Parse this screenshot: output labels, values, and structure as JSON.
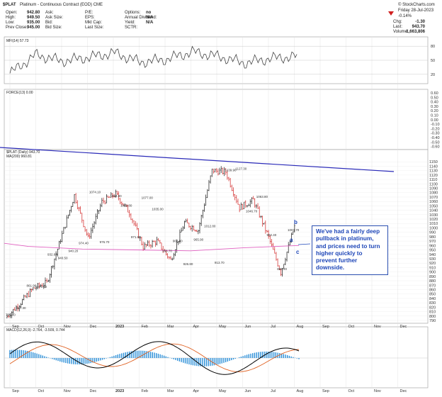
{
  "header": {
    "symbol": "$PLAT",
    "name": "Platinum - Continuous Contract (EOD) CME",
    "source": "© StockCharts.com",
    "date": "Friday 28-Jul-2023",
    "change_pct": "-0.14%",
    "fields": [
      {
        "label": "Open:",
        "value": "942.80"
      },
      {
        "label": "High:",
        "value": "949.50"
      },
      {
        "label": "Low:",
        "value": "935.00"
      },
      {
        "label": "Prev Close:",
        "value": "945.00"
      },
      {
        "label": "Ask:",
        "value": ""
      },
      {
        "label": "Ask Size:",
        "value": ""
      },
      {
        "label": "Bid:",
        "value": ""
      },
      {
        "label": "Bid Size:",
        "value": ""
      },
      {
        "label": "P/E:",
        "value": ""
      },
      {
        "label": "EPS:",
        "value": ""
      },
      {
        "label": "Mkt Cap:",
        "value": ""
      },
      {
        "label": "Last Size:",
        "value": ""
      },
      {
        "label": "Options:",
        "value": "no"
      },
      {
        "label": "Annual Dividend:",
        "value": "N/A"
      },
      {
        "label": "Yield:",
        "value": "N/A"
      },
      {
        "label": "SCTR:",
        "value": ""
      }
    ],
    "right": [
      {
        "label": "Chg:",
        "value": "-1.30"
      },
      {
        "label": "Last:",
        "value": "943.70"
      },
      {
        "label": "Volume:",
        "value": "1,663,806"
      }
    ]
  },
  "annotation": "We've had a fairly deep pullback in platinum, and prices need to turn higher quickly to prevent further downside.",
  "wave_labels": [
    "b",
    "a",
    "c"
  ],
  "colors": {
    "price_up": "#111111",
    "price_down": "#d02020",
    "ma": "#e060c0",
    "trend": "#2a2ab8",
    "macd": "#000000",
    "signal": "#e06020",
    "hist": "#2b8fd8"
  },
  "chart_data": [
    {
      "type": "line",
      "title": "MFI(14) 57.73",
      "ylim": [
        0,
        100
      ],
      "y_ticks": [
        "20",
        "50",
        "80"
      ],
      "series": [
        {
          "name": "MFI(14)",
          "x": [
            "Sep",
            "Oct",
            "Nov",
            "Dec",
            "2023",
            "Feb",
            "Mar",
            "Apr",
            "May",
            "Jun",
            "Jul",
            "Aug"
          ],
          "values": [
            22,
            62,
            48,
            56,
            66,
            46,
            52,
            68,
            58,
            44,
            54,
            58
          ]
        }
      ]
    },
    {
      "type": "line",
      "title": "FORCE(13) 0.00",
      "y_ticks": [
        "0.60",
        "0.50",
        "0.40",
        "0.30",
        "0.20",
        "0.10",
        "0.00",
        "-0.10",
        "-0.20",
        "-0.30",
        "-0.40",
        "-0.50",
        "-0.60"
      ],
      "series": []
    },
    {
      "type": "line",
      "title": "$PLAT (Daily) 943.70",
      "legend": [
        "MA(200) 960.81"
      ],
      "ylim": [
        790,
        1160
      ],
      "x_ticks": [
        "Sep",
        "Oct",
        "Nov",
        "Dec",
        "2023",
        "Feb",
        "Mar",
        "Apr",
        "May",
        "Jun",
        "Jul",
        "Aug",
        "Sep",
        "Oct",
        "Nov",
        "Dec"
      ],
      "y_ticks": [
        "1150",
        "1140",
        "1130",
        "1120",
        "1110",
        "1100",
        "1090",
        "1080",
        "1070",
        "1060",
        "1050",
        "1040",
        "1030",
        "1020",
        "1010",
        "1000",
        "990",
        "980",
        "970",
        "960",
        "950",
        "940",
        "930",
        "920",
        "910",
        "900",
        "890",
        "880",
        "870",
        "860",
        "850",
        "840",
        "830",
        "820",
        "810",
        "800",
        "790"
      ],
      "series": [
        {
          "name": "$PLAT",
          "x": [
            "Sep",
            "Sep",
            "Oct",
            "Oct",
            "Nov",
            "Nov",
            "Dec",
            "Dec",
            "2023",
            "2023",
            "Feb",
            "Feb",
            "Mar",
            "Mar",
            "Apr",
            "Apr",
            "May",
            "May",
            "Jun",
            "Jun",
            "Jul",
            "Jul"
          ],
          "values": [
            796,
            827,
            862,
            876,
            974,
            1074,
            976,
            1059,
            1077,
            1035,
            957,
            970,
            927,
            1012,
            995,
            1130,
            1127,
            1046,
            1063,
            988,
            899,
            1003
          ]
        },
        {
          "name": "MA(200)",
          "x": [
            "Sep",
            "Nov",
            "2023",
            "Mar",
            "May",
            "Jul"
          ],
          "values": [
            958,
            952,
            950,
            948,
            955,
            960
          ]
        }
      ],
      "annotations": [
        "796.00",
        "827.30",
        "861.90",
        "875.60",
        "932.60",
        "940.50",
        "940.20",
        "974.40",
        "1074.10",
        "976.70",
        "1064.80",
        "1059.80",
        "971.80",
        "1077.00",
        "1035.00",
        "956.70",
        "962.80",
        "926.80",
        "965.90",
        "1012.80",
        "913.70",
        "1139.90",
        "1127.30",
        "1046.70",
        "1063.80",
        "992.40",
        "899.20",
        "1003.70"
      ]
    },
    {
      "type": "line",
      "title": "MACD(12,26,9) -2.764, -3.509, 0.744",
      "series": [
        {
          "name": "MACD",
          "x": [],
          "values": []
        },
        {
          "name": "Signal",
          "x": [],
          "values": []
        },
        {
          "name": "Histogram",
          "x": [],
          "values": []
        }
      ]
    }
  ]
}
